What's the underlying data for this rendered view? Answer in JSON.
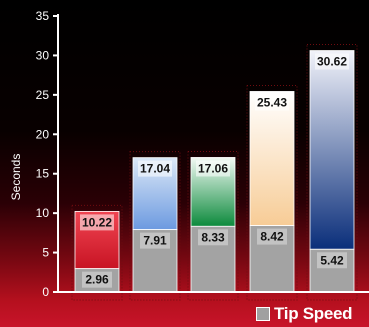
{
  "chart_data": {
    "type": "bar",
    "stacked": true,
    "title": "",
    "xlabel": "",
    "ylabel": "Seconds",
    "ylim": [
      0,
      35
    ],
    "yticks": [
      "0",
      "5",
      "10",
      "15",
      "20",
      "25",
      "30",
      "35"
    ],
    "grid": false,
    "legend_position": "bottom-right",
    "series": [
      {
        "name": "Tip Speed",
        "values": [
          2.96,
          7.91,
          8.33,
          8.42,
          5.42
        ],
        "labels": [
          "2.96",
          "7.91",
          "8.33",
          "8.42",
          "5.42"
        ]
      },
      {
        "name": "",
        "values": [
          7.26,
          9.13,
          8.73,
          17.01,
          25.2
        ],
        "labels": [
          "10.22",
          "17.04",
          "17.06",
          "25.43",
          "30.62"
        ]
      }
    ],
    "colors": {
      "tip_speed": "#a3a3a3",
      "bars": [
        [
          "#c81424",
          "#f04552"
        ],
        [
          "#6c9ae0",
          "#dce8f7"
        ],
        [
          "#0c8a3c",
          "#f2faf4"
        ],
        [
          "#f7cc96",
          "#ffffff"
        ],
        [
          "#0a2e7a",
          "#f2f3fa"
        ]
      ]
    }
  }
}
